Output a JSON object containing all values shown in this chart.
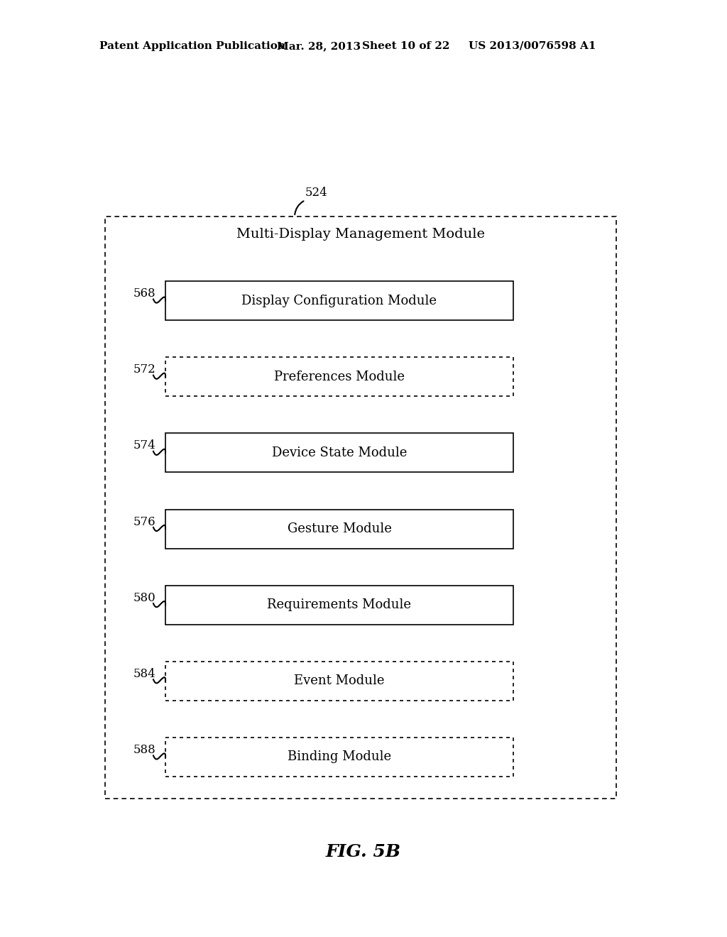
{
  "bg_color": "#ffffff",
  "header_text": "Patent Application Publication",
  "header_date": "Mar. 28, 2013",
  "header_sheet": "Sheet 10 of 22",
  "header_patent": "US 2013/0076598 A1",
  "figure_label": "FIG. 5B",
  "outer_box_label": "524",
  "outer_box_title": "Multi-Display Management Module",
  "modules": [
    {
      "label": "568",
      "text": "Display Configuration Module",
      "dotted": false
    },
    {
      "label": "572",
      "text": "Preferences Module",
      "dotted": true
    },
    {
      "label": "574",
      "text": "Device State Module",
      "dotted": false
    },
    {
      "label": "576",
      "text": "Gesture Module",
      "dotted": false
    },
    {
      "label": "580",
      "text": "Requirements Module",
      "dotted": false
    },
    {
      "label": "584",
      "text": "Event Module",
      "dotted": true
    },
    {
      "label": "588",
      "text": "Binding Module",
      "dotted": true
    }
  ]
}
